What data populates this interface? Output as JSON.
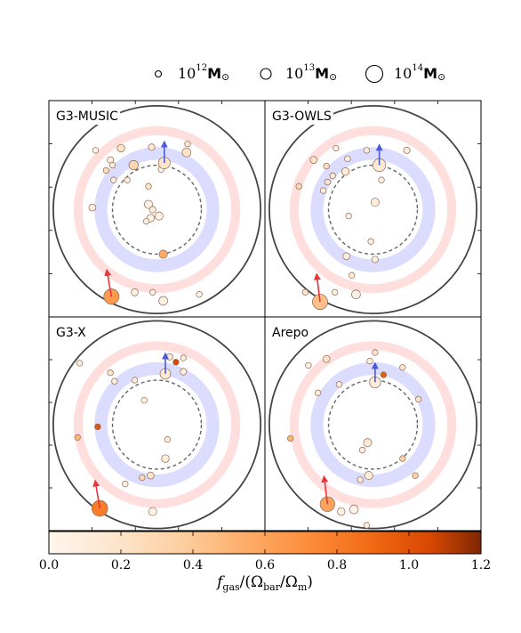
{
  "legend": {
    "items": [
      {
        "base": "10",
        "exp": "12",
        "unit": "M",
        "sun": "⊙",
        "size": "small"
      },
      {
        "base": "10",
        "exp": "13",
        "unit": "M",
        "sun": "⊙",
        "size": "medium"
      },
      {
        "base": "10",
        "exp": "14",
        "unit": "M",
        "sun": "⊙",
        "size": "large"
      }
    ]
  },
  "colorbar": {
    "min": 0.0,
    "max": 1.2,
    "ticks": [
      "0.0",
      "0.2",
      "0.4",
      "0.6",
      "0.8",
      "1.0",
      "1.2"
    ],
    "label_f": "f",
    "label_sub": "gas",
    "label_rest": "/(Ω",
    "label_sub2": "bar",
    "label_mid": "/Ω",
    "label_sub3": "m",
    "label_end": ")"
  },
  "colors": {
    "cmap_low": "#fff5eb",
    "cmap_mid": "#f98d3b",
    "cmap_high": "#7f2704",
    "arrow_red": "#e8343b",
    "arrow_blue": "#4b58d8",
    "band_red": "#ffdede",
    "band_blue": "#dcdcff"
  },
  "chart_data": [
    {
      "type": "scatter",
      "title": "G3-MUSIC",
      "points": [
        {
          "x": -0.58,
          "y": 0.56,
          "size": 1.0,
          "f": 0.05
        },
        {
          "x": -0.34,
          "y": 0.58,
          "size": 1.3,
          "f": 0.2
        },
        {
          "x": -0.44,
          "y": 0.47,
          "size": 1.1,
          "f": 0.1
        },
        {
          "x": -0.42,
          "y": 0.42,
          "size": 1.0,
          "f": 0.15
        },
        {
          "x": -0.48,
          "y": 0.37,
          "size": 1.0,
          "f": 0.25
        },
        {
          "x": -0.22,
          "y": 0.42,
          "size": 1.6,
          "f": 0.3
        },
        {
          "x": -0.05,
          "y": 0.59,
          "size": 1.1,
          "f": 0.15
        },
        {
          "x": 0.04,
          "y": 0.38,
          "size": 1.0,
          "f": 0.05
        },
        {
          "x": 0.07,
          "y": 0.44,
          "size": 2.0,
          "f": 0.2
        },
        {
          "x": 0.29,
          "y": 0.62,
          "size": 1.0,
          "f": 0.15
        },
        {
          "x": 0.28,
          "y": 0.54,
          "size": 1.5,
          "f": 0.2
        },
        {
          "x": -0.41,
          "y": 0.28,
          "size": 1.0,
          "f": 0.1
        },
        {
          "x": -0.28,
          "y": 0.28,
          "size": 1.0,
          "f": 0.1
        },
        {
          "x": -0.61,
          "y": 0.02,
          "size": 1.2,
          "f": 0.1
        },
        {
          "x": -0.08,
          "y": 0.22,
          "size": 1.0,
          "f": 0.2
        },
        {
          "x": -0.08,
          "y": 0.05,
          "size": 1.4,
          "f": 0.05
        },
        {
          "x": -0.04,
          "y": 0.0,
          "size": 1.1,
          "f": 0.05
        },
        {
          "x": -0.06,
          "y": -0.08,
          "size": 1.3,
          "f": 0.05
        },
        {
          "x": 0.02,
          "y": -0.06,
          "size": 1.4,
          "f": 0.05
        },
        {
          "x": -0.1,
          "y": -0.11,
          "size": 1.0,
          "f": 0.05
        },
        {
          "x": 0.06,
          "y": -0.42,
          "size": 1.4,
          "f": 0.55
        },
        {
          "x": -0.04,
          "y": -0.78,
          "size": 1.0,
          "f": 0.05
        },
        {
          "x": 0.06,
          "y": -0.86,
          "size": 1.5,
          "f": 0.05
        },
        {
          "x": -0.21,
          "y": -0.78,
          "size": 1.2,
          "f": 0.05
        },
        {
          "x": -0.43,
          "y": -0.82,
          "size": 2.6,
          "f": 0.65
        },
        {
          "x": 0.4,
          "y": -0.8,
          "size": 1.0,
          "f": 0.05
        }
      ],
      "arrows": [
        {
          "x": 0.07,
          "y": 0.44,
          "dx": 0.0,
          "dy": 0.18,
          "color": "blue"
        },
        {
          "x": -0.43,
          "y": -0.82,
          "dx": -0.04,
          "dy": 0.23,
          "color": "red"
        }
      ]
    },
    {
      "type": "scatter",
      "title": "G3-OWLS",
      "points": [
        {
          "x": -0.56,
          "y": 0.47,
          "size": 1.2,
          "f": 0.2
        },
        {
          "x": -0.35,
          "y": 0.58,
          "size": 1.0,
          "f": 0.1
        },
        {
          "x": -0.24,
          "y": 0.48,
          "size": 1.0,
          "f": 0.05
        },
        {
          "x": -0.44,
          "y": 0.41,
          "size": 1.0,
          "f": 0.25
        },
        {
          "x": -0.38,
          "y": 0.32,
          "size": 1.0,
          "f": 0.15
        },
        {
          "x": -0.26,
          "y": 0.36,
          "size": 1.3,
          "f": 0.1
        },
        {
          "x": -0.06,
          "y": 0.56,
          "size": 1.0,
          "f": 0.1
        },
        {
          "x": 0.06,
          "y": 0.42,
          "size": 2.2,
          "f": 0.15
        },
        {
          "x": 0.32,
          "y": 0.56,
          "size": 1.1,
          "f": 0.1
        },
        {
          "x": -0.43,
          "y": 0.26,
          "size": 1.0,
          "f": 0.2
        },
        {
          "x": -0.47,
          "y": 0.18,
          "size": 1.0,
          "f": 0.1
        },
        {
          "x": -0.7,
          "y": 0.22,
          "size": 1.0,
          "f": 0.3
        },
        {
          "x": 0.08,
          "y": 0.28,
          "size": 1.0,
          "f": 0.05
        },
        {
          "x": 0.02,
          "y": 0.07,
          "size": 1.4,
          "f": 0.1
        },
        {
          "x": -0.23,
          "y": -0.06,
          "size": 1.0,
          "f": 0.05
        },
        {
          "x": -0.02,
          "y": -0.3,
          "size": 1.0,
          "f": 0.1
        },
        {
          "x": -0.25,
          "y": -0.44,
          "size": 1.2,
          "f": 0.1
        },
        {
          "x": 0.02,
          "y": -0.47,
          "size": 1.1,
          "f": 0.05
        },
        {
          "x": -0.2,
          "y": -0.62,
          "size": 1.0,
          "f": 0.1
        },
        {
          "x": -0.64,
          "y": -0.78,
          "size": 1.0,
          "f": 0.2
        },
        {
          "x": -0.36,
          "y": -0.78,
          "size": 1.0,
          "f": 0.1
        },
        {
          "x": -0.16,
          "y": -0.8,
          "size": 1.5,
          "f": 0.05
        },
        {
          "x": -0.5,
          "y": -0.87,
          "size": 2.6,
          "f": 0.45
        }
      ],
      "arrows": [
        {
          "x": 0.06,
          "y": 0.42,
          "dx": 0.0,
          "dy": 0.17,
          "color": "blue"
        },
        {
          "x": -0.5,
          "y": -0.87,
          "dx": -0.03,
          "dy": 0.24,
          "color": "red"
        }
      ]
    },
    {
      "type": "scatter",
      "title": "G3-X",
      "points": [
        {
          "x": -0.73,
          "y": 0.58,
          "size": 1.0,
          "f": 0.1
        },
        {
          "x": -0.44,
          "y": 0.49,
          "size": 1.0,
          "f": 0.2
        },
        {
          "x": -0.4,
          "y": 0.41,
          "size": 1.0,
          "f": 0.1
        },
        {
          "x": -0.21,
          "y": 0.42,
          "size": 1.0,
          "f": 0.1
        },
        {
          "x": 0.12,
          "y": 0.64,
          "size": 1.1,
          "f": 0.15
        },
        {
          "x": 0.25,
          "y": 0.63,
          "size": 1.0,
          "f": 0.1
        },
        {
          "x": 0.18,
          "y": 0.59,
          "size": 1.0,
          "f": 1.05
        },
        {
          "x": 0.25,
          "y": 0.5,
          "size": 1.1,
          "f": 0.1
        },
        {
          "x": 0.08,
          "y": 0.48,
          "size": 1.8,
          "f": 0.15
        },
        {
          "x": -0.12,
          "y": 0.23,
          "size": 1.0,
          "f": 0.05
        },
        {
          "x": -0.56,
          "y": -0.02,
          "size": 1.0,
          "f": 1.0
        },
        {
          "x": -0.75,
          "y": -0.12,
          "size": 1.0,
          "f": 0.5
        },
        {
          "x": 0.1,
          "y": -0.14,
          "size": 1.0,
          "f": 0.05
        },
        {
          "x": 0.08,
          "y": -0.32,
          "size": 1.3,
          "f": 0.1
        },
        {
          "x": -0.14,
          "y": -0.5,
          "size": 1.0,
          "f": 0.3
        },
        {
          "x": -0.06,
          "y": -0.48,
          "size": 1.2,
          "f": 0.2
        },
        {
          "x": -0.3,
          "y": -0.56,
          "size": 1.0,
          "f": 0.05
        },
        {
          "x": -0.04,
          "y": -0.82,
          "size": 1.4,
          "f": 0.05
        },
        {
          "x": -0.54,
          "y": -0.79,
          "size": 2.7,
          "f": 0.8
        }
      ],
      "arrows": [
        {
          "x": 0.08,
          "y": 0.48,
          "dx": 0.0,
          "dy": 0.17,
          "color": "blue"
        },
        {
          "x": -0.54,
          "y": -0.79,
          "dx": -0.04,
          "dy": 0.24,
          "color": "red"
        }
      ]
    },
    {
      "type": "scatter",
      "title": "Arepo",
      "points": [
        {
          "x": -0.44,
          "y": 0.62,
          "size": 1.2,
          "f": 0.2
        },
        {
          "x": -0.61,
          "y": 0.56,
          "size": 1.0,
          "f": 0.1
        },
        {
          "x": -0.03,
          "y": 0.6,
          "size": 1.0,
          "f": 0.1
        },
        {
          "x": 0.02,
          "y": 0.68,
          "size": 1.0,
          "f": 0.2
        },
        {
          "x": 0.28,
          "y": 0.54,
          "size": 1.0,
          "f": 0.2
        },
        {
          "x": 0.1,
          "y": 0.47,
          "size": 1.0,
          "f": 0.95
        },
        {
          "x": 0.02,
          "y": 0.4,
          "size": 1.9,
          "f": 0.1
        },
        {
          "x": -0.32,
          "y": 0.38,
          "size": 1.0,
          "f": 0.1
        },
        {
          "x": -0.52,
          "y": 0.3,
          "size": 1.0,
          "f": 0.1
        },
        {
          "x": 0.43,
          "y": 0.24,
          "size": 1.0,
          "f": 0.2
        },
        {
          "x": -0.78,
          "y": -0.13,
          "size": 1.0,
          "f": 0.5
        },
        {
          "x": -0.05,
          "y": -0.17,
          "size": 1.4,
          "f": 0.15
        },
        {
          "x": -0.1,
          "y": -0.24,
          "size": 1.0,
          "f": 0.05
        },
        {
          "x": 0.28,
          "y": -0.32,
          "size": 1.0,
          "f": 0.35
        },
        {
          "x": -0.04,
          "y": -0.48,
          "size": 1.4,
          "f": 0.1
        },
        {
          "x": -0.12,
          "y": -0.52,
          "size": 1.0,
          "f": 0.15
        },
        {
          "x": 0.4,
          "y": -0.48,
          "size": 1.0,
          "f": 0.35
        },
        {
          "x": -0.18,
          "y": -0.8,
          "size": 1.5,
          "f": 0.05
        },
        {
          "x": -0.3,
          "y": -0.82,
          "size": 1.3,
          "f": 0.05
        },
        {
          "x": -0.06,
          "y": -0.95,
          "size": 1.0,
          "f": 0.1
        },
        {
          "x": -0.43,
          "y": -0.75,
          "size": 2.5,
          "f": 0.6
        }
      ],
      "arrows": [
        {
          "x": 0.02,
          "y": 0.4,
          "dx": 0.0,
          "dy": 0.16,
          "color": "blue"
        },
        {
          "x": -0.43,
          "y": -0.75,
          "dx": -0.03,
          "dy": 0.24,
          "color": "red"
        }
      ]
    }
  ]
}
